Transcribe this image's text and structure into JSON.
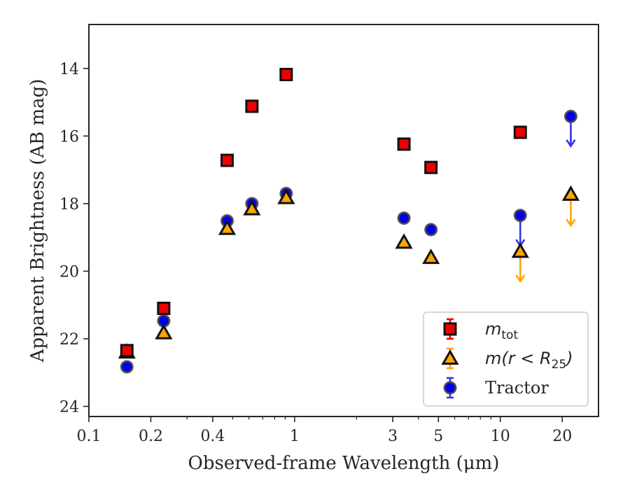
{
  "chart_data": {
    "type": "scatter",
    "xlabel": "Observed-frame Wavelength (μm)",
    "ylabel": "Apparent Brightness (AB mag)",
    "xscale": "log",
    "xlim": [
      0.1,
      30
    ],
    "ylim": [
      24.3,
      12.7
    ],
    "y_inverted": true,
    "xticks": [
      {
        "value": 0.1,
        "label": "0.1"
      },
      {
        "value": 0.2,
        "label": "0.2"
      },
      {
        "value": 0.4,
        "label": "0.4"
      },
      {
        "value": 1,
        "label": "1"
      },
      {
        "value": 3,
        "label": "3"
      },
      {
        "value": 5,
        "label": "5"
      },
      {
        "value": 10,
        "label": "10"
      },
      {
        "value": 20,
        "label": "20"
      }
    ],
    "yticks": [
      {
        "value": 14,
        "label": "14"
      },
      {
        "value": 16,
        "label": "16"
      },
      {
        "value": 18,
        "label": "18"
      },
      {
        "value": 20,
        "label": "20"
      },
      {
        "value": 22,
        "label": "22"
      },
      {
        "value": 24,
        "label": "24"
      }
    ],
    "legend_position": "lower right",
    "series": [
      {
        "name": "m_tot",
        "legend_base": "m",
        "legend_sub": "tot",
        "legend_rest": "",
        "marker": "square",
        "color": "#ee0000",
        "error_color": "#ee0000",
        "points": [
          {
            "x": 0.153,
            "y": 22.35
          },
          {
            "x": 0.231,
            "y": 21.1
          },
          {
            "x": 0.47,
            "y": 16.72
          },
          {
            "x": 0.62,
            "y": 15.12
          },
          {
            "x": 0.91,
            "y": 14.18
          },
          {
            "x": 3.4,
            "y": 16.24
          },
          {
            "x": 4.6,
            "y": 16.93
          },
          {
            "x": 12.5,
            "y": 15.89
          }
        ]
      },
      {
        "name": "m(r < R_25)",
        "legend_base": "m(r < R",
        "legend_sub": "25",
        "legend_rest": ")",
        "marker": "triangle",
        "color": "#ffa500",
        "error_color": "#ffa500",
        "points": [
          {
            "x": 0.153,
            "y": 22.4
          },
          {
            "x": 0.231,
            "y": 21.83
          },
          {
            "x": 0.47,
            "y": 18.74
          },
          {
            "x": 0.62,
            "y": 18.16
          },
          {
            "x": 0.91,
            "y": 17.83
          },
          {
            "x": 3.4,
            "y": 19.15
          },
          {
            "x": 4.6,
            "y": 19.6
          },
          {
            "x": 12.5,
            "y": 19.42,
            "upper_limit": true,
            "arrow_to": 20.3
          },
          {
            "x": 22,
            "y": 17.73,
            "upper_limit": true,
            "arrow_to": 18.65
          }
        ]
      },
      {
        "name": "Tractor",
        "legend_base": "Tractor",
        "legend_sub": "",
        "legend_rest": "",
        "marker": "circle",
        "color": "#0000ee",
        "error_color": "#3333ee",
        "points": [
          {
            "x": 0.153,
            "y": 22.83
          },
          {
            "x": 0.231,
            "y": 21.47
          },
          {
            "x": 0.47,
            "y": 18.51
          },
          {
            "x": 0.62,
            "y": 18.0
          },
          {
            "x": 0.91,
            "y": 17.7
          },
          {
            "x": 3.4,
            "y": 18.43
          },
          {
            "x": 4.6,
            "y": 18.77
          },
          {
            "x": 12.5,
            "y": 18.35,
            "upper_limit": true,
            "arrow_to": 19.25
          },
          {
            "x": 22,
            "y": 15.42,
            "upper_limit": true,
            "arrow_to": 16.3
          }
        ]
      }
    ]
  }
}
